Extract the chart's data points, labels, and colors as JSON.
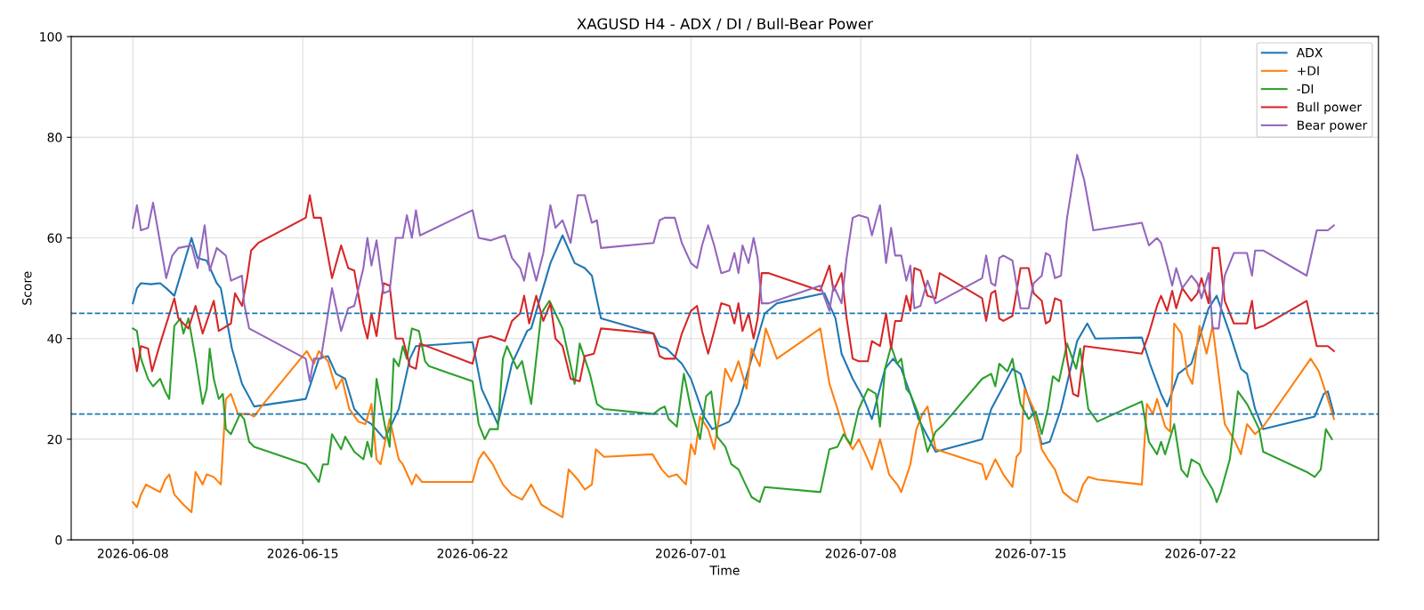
{
  "chart_data": {
    "type": "line",
    "title": "XAGUSD H4 - ADX / DI / Bull-Bear Power",
    "xlabel": "Time",
    "ylabel": "Score",
    "xlim": [
      "2026-06-05T11:00",
      "2026-07-29T08:00"
    ],
    "xticks": [
      "2026-06-08",
      "2026-06-15",
      "2026-06-22",
      "2026-07-01",
      "2026-07-08",
      "2026-07-15",
      "2026-07-22"
    ],
    "ylim": [
      0,
      100
    ],
    "yticks": [
      0,
      20,
      40,
      60,
      80,
      100
    ],
    "grid": true,
    "legend": "top right",
    "line_style": "solid",
    "marker": "none",
    "ref_lines": [
      {
        "axis": "y",
        "value": 45,
        "color": "#1f77b4",
        "line_style": "dashed"
      },
      {
        "axis": "y",
        "value": 25,
        "color": "#1f77b4",
        "line_style": "dashed"
      }
    ],
    "series": [
      {
        "name": "ADX",
        "color": "#1f77b4",
        "x": [
          "2026-06-08T00:00",
          "2026-06-08T04:00",
          "2026-06-08T08:00",
          "2026-06-08T18:00",
          "2026-06-09T03:00",
          "2026-06-09T09:00",
          "2026-06-09T17:00",
          "2026-06-10T10:00",
          "2026-06-10T16:00",
          "2026-06-11T01:00",
          "2026-06-11T11:00",
          "2026-06-11T15:00",
          "2026-06-12T02:00",
          "2026-06-12T12:00",
          "2026-06-13T00:00",
          "2026-06-15T03:00",
          "2026-06-15T16:00",
          "2026-06-16T01:00",
          "2026-06-16T09:00",
          "2026-06-16T18:00",
          "2026-06-17T03:00",
          "2026-06-17T12:00",
          "2026-06-17T20:00",
          "2026-06-18T09:00",
          "2026-06-18T23:00",
          "2026-06-19T10:00",
          "2026-06-19T16:00",
          "2026-06-22T00:00",
          "2026-06-22T09:00",
          "2026-06-23T01:00",
          "2026-06-23T15:00",
          "2026-06-24T06:00",
          "2026-06-24T10:00",
          "2026-06-25T05:00",
          "2026-06-25T17:00",
          "2026-06-26T05:00",
          "2026-06-26T15:00",
          "2026-06-26T22:00",
          "2026-06-27T07:00",
          "2026-06-29T11:00",
          "2026-06-29T17:00",
          "2026-06-30T00:00",
          "2026-06-30T15:00",
          "2026-07-01T00:00",
          "2026-07-01T13:00",
          "2026-07-01T21:00",
          "2026-07-02T14:00",
          "2026-07-02T23:00",
          "2026-07-04T01:00",
          "2026-07-04T13:00",
          "2026-07-06T12:00",
          "2026-07-06T23:00",
          "2026-07-07T05:00",
          "2026-07-07T16:00",
          "2026-07-08T03:00",
          "2026-07-08T11:00",
          "2026-07-09T00:00",
          "2026-07-09T08:00",
          "2026-07-09T16:00",
          "2026-07-10T01:00",
          "2026-07-10T09:00",
          "2026-07-11T02:00",
          "2026-07-13T00:00",
          "2026-07-13T09:00",
          "2026-07-13T21:00",
          "2026-07-14T06:00",
          "2026-07-14T14:00",
          "2026-07-15T03:00",
          "2026-07-15T11:00",
          "2026-07-15T19:00",
          "2026-07-16T06:00",
          "2026-07-16T22:00",
          "2026-07-17T08:00",
          "2026-07-17T16:00",
          "2026-07-19T14:00",
          "2026-07-19T22:00",
          "2026-07-20T09:00",
          "2026-07-20T15:00",
          "2026-07-21T02:00",
          "2026-07-21T15:00",
          "2026-07-22T08:00",
          "2026-07-22T16:00",
          "2026-07-23T05:00",
          "2026-07-23T16:00",
          "2026-07-23T22:00",
          "2026-07-24T06:00",
          "2026-07-24T14:00",
          "2026-07-26T17:00",
          "2026-07-27T02:00",
          "2026-07-27T06:00",
          "2026-07-27T12:00"
        ],
        "values": [
          47,
          50,
          51,
          50.8,
          51,
          50,
          48.5,
          60,
          56,
          55.5,
          51,
          50,
          38,
          31,
          26.5,
          28,
          36,
          36.5,
          33,
          32,
          26,
          24,
          23,
          20,
          26,
          36,
          38.5,
          39.3,
          30,
          23,
          35,
          41.5,
          42,
          55,
          60.5,
          55,
          54,
          52.5,
          44,
          41,
          38.5,
          38,
          35,
          32,
          24.5,
          22,
          23.5,
          27,
          45,
          47,
          49,
          44,
          37,
          32,
          28,
          24,
          34,
          36,
          34,
          29,
          24,
          17.5,
          20,
          26,
          30.5,
          34,
          33,
          25,
          19,
          19.5,
          26,
          39.5,
          43,
          40,
          40.2,
          35,
          29,
          26.5,
          33,
          35,
          46,
          48.5,
          41,
          34,
          33,
          26,
          22,
          24.5,
          29,
          29.5,
          25
        ]
      },
      {
        "name": "+DI",
        "color": "#ff7f0e",
        "x": [
          "2026-06-08T00:00",
          "2026-06-08T04:00",
          "2026-06-08T08:00",
          "2026-06-08T13:00",
          "2026-06-08T22:00",
          "2026-06-09T03:00",
          "2026-06-09T08:00",
          "2026-06-09T12:00",
          "2026-06-09T17:00",
          "2026-06-10T02:00",
          "2026-06-10T10:00",
          "2026-06-10T14:00",
          "2026-06-10T21:00",
          "2026-06-11T01:00",
          "2026-06-11T08:00",
          "2026-06-11T15:00",
          "2026-06-11T20:00",
          "2026-06-12T01:00",
          "2026-06-12T08:00",
          "2026-06-12T19:00",
          "2026-06-13T00:00",
          "2026-06-13T09:00",
          "2026-06-15T04:00",
          "2026-06-15T11:00",
          "2026-06-15T16:00",
          "2026-06-16T01:00",
          "2026-06-16T09:00",
          "2026-06-16T15:00",
          "2026-06-16T22:00",
          "2026-06-17T07:00",
          "2026-06-17T14:00",
          "2026-06-17T20:00",
          "2026-06-18T01:00",
          "2026-06-18T05:00",
          "2026-06-18T14:00",
          "2026-06-18T23:00",
          "2026-06-19T03:00",
          "2026-06-19T12:00",
          "2026-06-19T16:00",
          "2026-06-19T22:00",
          "2026-06-22T00:00",
          "2026-06-22T06:00",
          "2026-06-22T11:00",
          "2026-06-22T20:00",
          "2026-06-23T06:00",
          "2026-06-23T15:00",
          "2026-06-24T01:00",
          "2026-06-24T10:00",
          "2026-06-24T20:00",
          "2026-06-25T04:00",
          "2026-06-25T17:00",
          "2026-06-25T23:00",
          "2026-06-26T08:00",
          "2026-06-26T15:00",
          "2026-06-26T22:00",
          "2026-06-27T02:00",
          "2026-06-27T10:00",
          "2026-06-29T10:00",
          "2026-06-29T19:00",
          "2026-06-30T02:00",
          "2026-06-30T10:00",
          "2026-06-30T19:00",
          "2026-07-01T00:00",
          "2026-07-01T04:00",
          "2026-07-01T09:00",
          "2026-07-01T17:00",
          "2026-07-01T23:00",
          "2026-07-02T04:00",
          "2026-07-02T10:00",
          "2026-07-02T16:00",
          "2026-07-02T23:00",
          "2026-07-03T07:00",
          "2026-07-03T12:00",
          "2026-07-03T20:00",
          "2026-07-04T02:00",
          "2026-07-04T13:00",
          "2026-07-06T08:00",
          "2026-07-06T17:00",
          "2026-07-07T01:00",
          "2026-07-07T10:00",
          "2026-07-07T16:00",
          "2026-07-07T22:00",
          "2026-07-08T07:00",
          "2026-07-08T11:00",
          "2026-07-08T19:00",
          "2026-07-09T04:00",
          "2026-07-09T12:00",
          "2026-07-09T16:00",
          "2026-07-10T01:00",
          "2026-07-10T07:00",
          "2026-07-10T13:00",
          "2026-07-10T18:00",
          "2026-07-11T02:00",
          "2026-07-13T00:00",
          "2026-07-13T04:00",
          "2026-07-13T13:00",
          "2026-07-13T21:00",
          "2026-07-14T06:00",
          "2026-07-14T10:00",
          "2026-07-14T14:00",
          "2026-07-14T18:00",
          "2026-07-15T03:00",
          "2026-07-15T11:00",
          "2026-07-15T17:00",
          "2026-07-16T00:00",
          "2026-07-16T08:00",
          "2026-07-16T17:00",
          "2026-07-16T22:00",
          "2026-07-17T04:00",
          "2026-07-17T09:00",
          "2026-07-17T18:00",
          "2026-07-19T14:00",
          "2026-07-19T19:00",
          "2026-07-20T01:00",
          "2026-07-20T05:00",
          "2026-07-20T13:00",
          "2026-07-20T18:00",
          "2026-07-20T22:00",
          "2026-07-21T05:00",
          "2026-07-21T11:00",
          "2026-07-21T16:00",
          "2026-07-21T23:00",
          "2026-07-22T06:00",
          "2026-07-22T12:00",
          "2026-07-22T16:00",
          "2026-07-23T00:00",
          "2026-07-23T09:00",
          "2026-07-23T16:00",
          "2026-07-23T22:00",
          "2026-07-24T06:00",
          "2026-07-24T14:00",
          "2026-07-26T13:00",
          "2026-07-26T21:00",
          "2026-07-27T06:00",
          "2026-07-27T12:00"
        ],
        "values": [
          7.5,
          6.5,
          9,
          11,
          10,
          9.5,
          12,
          13,
          9,
          7,
          5.5,
          13.5,
          11,
          13,
          12.5,
          11,
          28,
          29,
          25,
          25,
          24.5,
          27,
          37.5,
          35,
          37.5,
          35.5,
          30,
          32,
          26,
          23.5,
          23,
          27,
          16,
          15,
          24,
          16,
          15,
          11,
          13,
          11.5,
          11.5,
          16,
          17.5,
          15,
          11,
          9,
          8,
          11,
          7,
          6,
          4.5,
          14,
          12,
          10,
          11,
          18,
          16.5,
          17,
          14,
          12.5,
          13,
          11,
          19,
          17,
          24.5,
          22,
          18,
          24.5,
          34,
          31.5,
          35.5,
          30,
          38,
          34.5,
          42,
          36,
          42,
          31,
          26,
          20,
          18,
          20,
          16,
          14,
          20,
          13,
          11,
          9.5,
          15,
          22,
          25,
          26.5,
          18,
          15,
          12,
          16,
          13,
          10.5,
          16.5,
          17.5,
          30,
          26,
          18,
          16,
          14,
          9.5,
          8,
          7.5,
          11,
          12.5,
          12,
          11,
          27,
          25,
          28,
          22.5,
          21.5,
          43,
          41,
          33,
          31,
          42.5,
          37,
          42.5,
          36,
          23,
          20,
          17,
          23,
          21,
          22.5,
          36,
          33.5,
          28,
          24
        ]
      },
      {
        "name": "-DI",
        "color": "#2ca02c",
        "x": [
          "2026-06-08T00:00",
          "2026-06-08T04:00",
          "2026-06-08T08:00",
          "2026-06-08T15:00",
          "2026-06-08T20:00",
          "2026-06-09T03:00",
          "2026-06-09T08:00",
          "2026-06-09T12:00",
          "2026-06-09T17:00",
          "2026-06-09T23:00",
          "2026-06-10T02:00",
          "2026-06-10T07:00",
          "2026-06-10T14:00",
          "2026-06-10T21:00",
          "2026-06-11T01:00",
          "2026-06-11T04:00",
          "2026-06-11T08:00",
          "2026-06-11T13:00",
          "2026-06-11T17:00",
          "2026-06-11T20:00",
          "2026-06-12T01:00",
          "2026-06-12T10:00",
          "2026-06-12T14:00",
          "2026-06-12T19:00",
          "2026-06-13T00:00",
          "2026-06-15T03:00",
          "2026-06-15T16:00",
          "2026-06-15T20:00",
          "2026-06-16T01:00",
          "2026-06-16T05:00",
          "2026-06-16T14:00",
          "2026-06-16T18:00",
          "2026-06-17T03:00",
          "2026-06-17T12:00",
          "2026-06-17T16:00",
          "2026-06-17T20:00",
          "2026-06-18T01:00",
          "2026-06-18T09:00",
          "2026-06-18T14:00",
          "2026-06-18T18:00",
          "2026-06-18T23:00",
          "2026-06-19T03:00",
          "2026-06-19T07:00",
          "2026-06-19T12:00",
          "2026-06-19T19:00",
          "2026-06-20T01:00",
          "2026-06-20T05:00",
          "2026-06-22T00:00",
          "2026-06-22T06:00",
          "2026-06-22T12:00",
          "2026-06-22T17:00",
          "2026-06-23T01:00",
          "2026-06-23T06:00",
          "2026-06-23T10:00",
          "2026-06-23T20:00",
          "2026-06-24T01:00",
          "2026-06-24T10:00",
          "2026-06-24T20:00",
          "2026-06-25T04:00",
          "2026-06-25T10:00",
          "2026-06-25T17:00",
          "2026-06-26T05:00",
          "2026-06-26T10:00",
          "2026-06-26T20:00",
          "2026-06-27T03:00",
          "2026-06-27T10:00",
          "2026-06-29T11:00",
          "2026-06-29T17:00",
          "2026-06-29T22:00",
          "2026-06-30T02:00",
          "2026-06-30T10:00",
          "2026-06-30T17:00",
          "2026-07-01T00:00",
          "2026-07-01T09:00",
          "2026-07-01T15:00",
          "2026-07-01T20:00",
          "2026-07-02T02:00",
          "2026-07-02T10:00",
          "2026-07-02T16:00",
          "2026-07-02T23:00",
          "2026-07-03T06:00",
          "2026-07-03T12:00",
          "2026-07-03T20:00",
          "2026-07-04T01:00",
          "2026-07-06T08:00",
          "2026-07-06T17:00",
          "2026-07-07T01:00",
          "2026-07-07T07:00",
          "2026-07-07T14:00",
          "2026-07-07T22:00",
          "2026-07-08T07:00",
          "2026-07-08T15:00",
          "2026-07-08T19:00",
          "2026-07-09T00:00",
          "2026-07-09T06:00",
          "2026-07-09T12:00",
          "2026-07-09T16:00",
          "2026-07-09T21:00",
          "2026-07-10T01:00",
          "2026-07-10T09:00",
          "2026-07-10T18:00",
          "2026-07-11T02:00",
          "2026-07-11T10:00",
          "2026-07-13T00:00",
          "2026-07-13T09:00",
          "2026-07-13T13:00",
          "2026-07-13T17:00",
          "2026-07-14T01:00",
          "2026-07-14T06:00",
          "2026-07-14T14:00",
          "2026-07-14T22:00",
          "2026-07-15T05:00",
          "2026-07-15T11:00",
          "2026-07-15T17:00",
          "2026-07-15T22:00",
          "2026-07-16T04:00",
          "2026-07-16T12:00",
          "2026-07-16T21:00",
          "2026-07-17T01:00",
          "2026-07-17T09:00",
          "2026-07-17T18:00",
          "2026-07-19T14:00",
          "2026-07-19T21:00",
          "2026-07-20T05:00",
          "2026-07-20T09:00",
          "2026-07-20T13:00",
          "2026-07-20T22:00",
          "2026-07-21T05:00",
          "2026-07-21T11:00",
          "2026-07-21T15:00",
          "2026-07-21T23:00",
          "2026-07-22T03:00",
          "2026-07-22T12:00",
          "2026-07-22T16:00",
          "2026-07-22T20:00",
          "2026-07-23T05:00",
          "2026-07-23T13:00",
          "2026-07-23T22:00",
          "2026-07-24T03:00",
          "2026-07-24T10:00",
          "2026-07-24T14:00",
          "2026-07-26T09:00",
          "2026-07-26T17:00",
          "2026-07-26T23:00",
          "2026-07-27T04:00",
          "2026-07-27T10:00"
        ],
        "values": [
          42,
          41.5,
          36,
          32,
          30.5,
          32,
          29.5,
          28,
          42.5,
          44,
          41,
          44,
          36,
          27,
          30,
          38,
          32,
          28,
          29,
          22,
          21,
          25,
          24,
          19.5,
          18.5,
          15,
          11.5,
          15,
          15,
          21,
          18,
          20.5,
          17.5,
          16,
          19.5,
          16.5,
          32,
          23,
          18.5,
          36,
          34.5,
          38.5,
          36,
          42,
          41.5,
          35.5,
          34.5,
          31.5,
          23,
          20,
          22,
          22,
          36,
          38.5,
          34,
          35.5,
          27,
          45,
          47.5,
          45,
          42,
          31,
          39,
          33,
          27,
          26,
          25,
          26,
          26.5,
          24,
          22.5,
          33,
          26,
          20,
          28.5,
          29.5,
          20.5,
          18.5,
          15,
          14,
          11,
          8.5,
          7.5,
          10.5,
          9.5,
          18,
          18.5,
          21,
          19,
          26,
          30,
          29,
          22.5,
          34,
          38.5,
          35,
          36,
          30,
          29,
          25,
          17.5,
          21.5,
          23,
          32,
          33,
          30.5,
          35,
          33.5,
          36,
          27,
          24,
          25.5,
          21,
          26,
          32.5,
          31.5,
          39,
          34,
          38,
          26,
          23.5,
          27.5,
          19.5,
          17,
          19.5,
          17,
          23,
          14,
          12.5,
          16,
          15,
          13,
          10,
          7.5,
          9.5,
          16,
          29.5,
          27,
          25,
          22,
          17.5,
          13.5,
          12.5,
          14,
          22,
          20
        ]
      },
      {
        "name": "Bull power",
        "color": "#d62728",
        "x": [
          "2026-06-08T00:00",
          "2026-06-08T04:00",
          "2026-06-08T08:00",
          "2026-06-08T15:00",
          "2026-06-08T19:00",
          "2026-06-09T03:00",
          "2026-06-09T17:00",
          "2026-06-09T21:00",
          "2026-06-10T07:00",
          "2026-06-10T14:00",
          "2026-06-10T21:00",
          "2026-06-11T08:00",
          "2026-06-11T13:00",
          "2026-06-12T01:00",
          "2026-06-12T05:00",
          "2026-06-12T12:00",
          "2026-06-12T17:00",
          "2026-06-12T21:00",
          "2026-06-13T04:00",
          "2026-06-15T03:00",
          "2026-06-15T07:00",
          "2026-06-15T11:00",
          "2026-06-15T18:00",
          "2026-06-16T05:00",
          "2026-06-16T14:00",
          "2026-06-16T21:00",
          "2026-06-17T03:00",
          "2026-06-17T12:00",
          "2026-06-17T16:00",
          "2026-06-17T20:00",
          "2026-06-18T01:00",
          "2026-06-18T08:00",
          "2026-06-18T14:00",
          "2026-06-18T20:00",
          "2026-06-19T03:00",
          "2026-06-19T10:00",
          "2026-06-19T16:00",
          "2026-06-19T20:00",
          "2026-06-22T00:00",
          "2026-06-22T06:00",
          "2026-06-22T18:00",
          "2026-06-23T01:00",
          "2026-06-23T08:00",
          "2026-06-23T15:00",
          "2026-06-23T23:00",
          "2026-06-24T03:00",
          "2026-06-24T08:00",
          "2026-06-24T15:00",
          "2026-06-24T22:00",
          "2026-06-25T05:00",
          "2026-06-25T10:00",
          "2026-06-25T17:00",
          "2026-06-26T01:00",
          "2026-06-26T10:00",
          "2026-06-26T15:00",
          "2026-06-27T00:00",
          "2026-06-27T07:00",
          "2026-06-29T11:00",
          "2026-06-29T17:00",
          "2026-06-29T22:00",
          "2026-06-30T08:00",
          "2026-06-30T15:00",
          "2026-07-01T00:00",
          "2026-07-01T06:00",
          "2026-07-01T11:00",
          "2026-07-01T17:00",
          "2026-07-01T23:00",
          "2026-07-02T06:00",
          "2026-07-02T14:00",
          "2026-07-02T19:00",
          "2026-07-02T23:00",
          "2026-07-03T03:00",
          "2026-07-03T09:00",
          "2026-07-03T14:00",
          "2026-07-03T18:00",
          "2026-07-03T22:00",
          "2026-07-04T05:00",
          "2026-07-04T12:00",
          "2026-07-06T08:00",
          "2026-07-06T17:00",
          "2026-07-06T21:00",
          "2026-07-07T05:00",
          "2026-07-07T10:00",
          "2026-07-07T16:00",
          "2026-07-07T22:00",
          "2026-07-08T07:00",
          "2026-07-08T11:00",
          "2026-07-08T19:00",
          "2026-07-09T01:00",
          "2026-07-09T06:00",
          "2026-07-09T10:00",
          "2026-07-09T16:00",
          "2026-07-09T21:00",
          "2026-07-10T01:00",
          "2026-07-10T05:00",
          "2026-07-10T11:00",
          "2026-07-10T18:00",
          "2026-07-11T02:00",
          "2026-07-11T06:00",
          "2026-07-13T00:00",
          "2026-07-13T04:00",
          "2026-07-13T09:00",
          "2026-07-13T13:00",
          "2026-07-13T17:00",
          "2026-07-13T21:00",
          "2026-07-14T06:00",
          "2026-07-14T14:00",
          "2026-07-14T22:00",
          "2026-07-15T03:00",
          "2026-07-15T11:00",
          "2026-07-15T15:00",
          "2026-07-15T19:00",
          "2026-07-16T00:00",
          "2026-07-16T06:00",
          "2026-07-16T12:00",
          "2026-07-16T18:00",
          "2026-07-16T23:00",
          "2026-07-17T05:00",
          "2026-07-19T14:00",
          "2026-07-19T21:00",
          "2026-07-20T05:00",
          "2026-07-20T09:00",
          "2026-07-20T15:00",
          "2026-07-20T20:00",
          "2026-07-21T00:00",
          "2026-07-21T06:00",
          "2026-07-21T15:00",
          "2026-07-21T21:00",
          "2026-07-22T01:00",
          "2026-07-22T08:00",
          "2026-07-22T12:00",
          "2026-07-22T18:00",
          "2026-07-23T00:00",
          "2026-07-23T09:00",
          "2026-07-23T22:00",
          "2026-07-24T03:00",
          "2026-07-24T06:00",
          "2026-07-24T14:00",
          "2026-07-26T09:00",
          "2026-07-26T19:00",
          "2026-07-27T06:00",
          "2026-07-27T12:00"
        ],
        "values": [
          38,
          33.5,
          38.5,
          38,
          33.5,
          39,
          48,
          44,
          42,
          46.5,
          41,
          47.5,
          41.5,
          43,
          49,
          46.5,
          52,
          57.5,
          59,
          64,
          68.5,
          64,
          64,
          52,
          58.5,
          54,
          53.5,
          43,
          40,
          45,
          40.5,
          51,
          50.5,
          40,
          40,
          34.5,
          34,
          39,
          35,
          40,
          40.5,
          40,
          39.5,
          43.5,
          45,
          48.5,
          43,
          48.5,
          43.5,
          47,
          40,
          38.5,
          32,
          31.5,
          36.5,
          37,
          42,
          41,
          36.5,
          36,
          36,
          41,
          45.5,
          46.5,
          41.5,
          37,
          41.5,
          47,
          46.5,
          43,
          47,
          41.5,
          45,
          40,
          44,
          53,
          53,
          52.5,
          49.5,
          54.5,
          49.5,
          53,
          44,
          36,
          35.5,
          35.5,
          39.5,
          38.5,
          45,
          38,
          43.5,
          43.5,
          48.5,
          45.5,
          54,
          53.5,
          48.5,
          48,
          53,
          48,
          43.5,
          49,
          49.5,
          44,
          43.5,
          44.5,
          54,
          54,
          49,
          47.5,
          43,
          43.5,
          48,
          47.5,
          36,
          29,
          28.5,
          38.5,
          37,
          41,
          46.5,
          48.5,
          45.5,
          49.5,
          46,
          50,
          47.5,
          49,
          52,
          47,
          58,
          58,
          47.5,
          43,
          43,
          47.5,
          42,
          42.5,
          47.5,
          38.5,
          38.5,
          37.5
        ]
      },
      {
        "name": "Bear power",
        "color": "#9467bd",
        "x": [
          "2026-06-08T00:00",
          "2026-06-08T04:00",
          "2026-06-08T08:00",
          "2026-06-08T15:00",
          "2026-06-08T20:00",
          "2026-06-09T03:00",
          "2026-06-09T09:00",
          "2026-06-09T15:00",
          "2026-06-09T21:00",
          "2026-06-10T10:00",
          "2026-06-10T16:00",
          "2026-06-10T23:00",
          "2026-06-11T04:00",
          "2026-06-11T11:00",
          "2026-06-11T20:00",
          "2026-06-12T01:00",
          "2026-06-12T12:00",
          "2026-06-12T14:00",
          "2026-06-12T19:00",
          "2026-06-15T03:00",
          "2026-06-15T07:00",
          "2026-06-15T11:00",
          "2026-06-15T18:00",
          "2026-06-16T05:00",
          "2026-06-16T14:00",
          "2026-06-16T21:00",
          "2026-06-17T03:00",
          "2026-06-17T12:00",
          "2026-06-17T16:00",
          "2026-06-17T20:00",
          "2026-06-18T01:00",
          "2026-06-18T08:00",
          "2026-06-18T14:00",
          "2026-06-18T20:00",
          "2026-06-19T03:00",
          "2026-06-19T07:00",
          "2026-06-19T12:00",
          "2026-06-19T16:00",
          "2026-06-19T20:00",
          "2026-06-22T00:00",
          "2026-06-22T06:00",
          "2026-06-22T18:00",
          "2026-06-23T01:00",
          "2026-06-23T08:00",
          "2026-06-23T15:00",
          "2026-06-23T23:00",
          "2026-06-24T03:00",
          "2026-06-24T08:00",
          "2026-06-24T15:00",
          "2026-06-24T22:00",
          "2026-06-25T05:00",
          "2026-06-25T10:00",
          "2026-06-25T17:00",
          "2026-06-26T01:00",
          "2026-06-26T08:00",
          "2026-06-26T15:00",
          "2026-06-26T22:00",
          "2026-06-27T03:00",
          "2026-06-27T07:00",
          "2026-06-29T11:00",
          "2026-06-29T17:00",
          "2026-06-29T22:00",
          "2026-06-30T08:00",
          "2026-06-30T15:00",
          "2026-07-01T00:00",
          "2026-07-01T06:00",
          "2026-07-01T11:00",
          "2026-07-01T17:00",
          "2026-07-01T23:00",
          "2026-07-02T06:00",
          "2026-07-02T14:00",
          "2026-07-02T19:00",
          "2026-07-02T23:00",
          "2026-07-03T03:00",
          "2026-07-03T09:00",
          "2026-07-03T14:00",
          "2026-07-03T18:00",
          "2026-07-03T22:00",
          "2026-07-04T05:00",
          "2026-07-04T12:00",
          "2026-07-06T08:00",
          "2026-07-06T17:00",
          "2026-07-06T21:00",
          "2026-07-07T05:00",
          "2026-07-07T10:00",
          "2026-07-07T16:00",
          "2026-07-07T22:00",
          "2026-07-08T07:00",
          "2026-07-08T11:00",
          "2026-07-08T19:00",
          "2026-07-09T01:00",
          "2026-07-09T06:00",
          "2026-07-09T10:00",
          "2026-07-09T16:00",
          "2026-07-09T21:00",
          "2026-07-10T01:00",
          "2026-07-10T05:00",
          "2026-07-10T11:00",
          "2026-07-10T18:00",
          "2026-07-11T02:00",
          "2026-07-13T00:00",
          "2026-07-13T04:00",
          "2026-07-13T09:00",
          "2026-07-13T13:00",
          "2026-07-13T17:00",
          "2026-07-13T21:00",
          "2026-07-14T06:00",
          "2026-07-14T14:00",
          "2026-07-14T22:00",
          "2026-07-15T03:00",
          "2026-07-15T11:00",
          "2026-07-15T15:00",
          "2026-07-15T19:00",
          "2026-07-16T00:00",
          "2026-07-16T06:00",
          "2026-07-16T12:00",
          "2026-07-16T22:00",
          "2026-07-17T05:00",
          "2026-07-17T14:00",
          "2026-07-19T14:00",
          "2026-07-19T21:00",
          "2026-07-20T05:00",
          "2026-07-20T09:00",
          "2026-07-20T15:00",
          "2026-07-20T20:00",
          "2026-07-21T00:00",
          "2026-07-21T06:00",
          "2026-07-21T15:00",
          "2026-07-21T21:00",
          "2026-07-22T01:00",
          "2026-07-22T08:00",
          "2026-07-22T12:00",
          "2026-07-22T18:00",
          "2026-07-23T00:00",
          "2026-07-23T09:00",
          "2026-07-23T22:00",
          "2026-07-24T03:00",
          "2026-07-24T06:00",
          "2026-07-24T14:00",
          "2026-07-26T09:00",
          "2026-07-26T19:00",
          "2026-07-27T06:00",
          "2026-07-27T12:00"
        ],
        "values": [
          62,
          66.5,
          61.5,
          62,
          67,
          59,
          52,
          56.5,
          58,
          58.5,
          54,
          62.5,
          53.5,
          58,
          56.5,
          51.5,
          52.5,
          47,
          42,
          36,
          31.5,
          36,
          36,
          50,
          41.5,
          46,
          46.5,
          54,
          60,
          54.5,
          59.5,
          49,
          49.5,
          60,
          60,
          64.5,
          60,
          65.5,
          60.5,
          65.5,
          60,
          59.5,
          60,
          60.5,
          56,
          54,
          51.5,
          57,
          51.5,
          57,
          66.5,
          62,
          63.5,
          59,
          68.5,
          68.5,
          63,
          63.5,
          58,
          59,
          63.5,
          64,
          64,
          59,
          55,
          54,
          58.5,
          62.5,
          58.5,
          53,
          53.5,
          57,
          53,
          58.5,
          55,
          60,
          56,
          47,
          47,
          47.5,
          50.5,
          45.5,
          50.5,
          47,
          56,
          64,
          64.5,
          64,
          60.5,
          66.5,
          55,
          62,
          56.5,
          56.5,
          51.5,
          54.5,
          46,
          46.5,
          51.5,
          47,
          52,
          56.5,
          51,
          50.5,
          56,
          56.5,
          55.5,
          46,
          46,
          51,
          52.5,
          57,
          56.5,
          52,
          52.5,
          64,
          76.5,
          71.5,
          61.5,
          63,
          58.5,
          60,
          59,
          54.5,
          50.5,
          54,
          50,
          52.5,
          51,
          48,
          53,
          42,
          42,
          52.5,
          57,
          57,
          52.5,
          57.5,
          57.5,
          52.5,
          61.5,
          61.5,
          62.5
        ]
      }
    ]
  }
}
